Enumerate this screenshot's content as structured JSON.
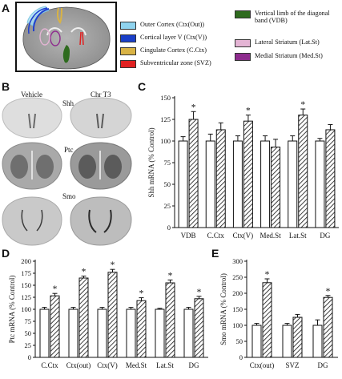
{
  "panels": {
    "A": "A",
    "B": "B",
    "C": "C",
    "D": "D",
    "E": "E"
  },
  "legend": [
    {
      "label": "Outer Cortex (Ctx(Out))",
      "color": "#8fd3ee"
    },
    {
      "label": "Cortical layer V (Ctx(V))",
      "color": "#1a3fc8"
    },
    {
      "label": "Cingulate Cortex (C.Ctx)",
      "color": "#d9b345"
    },
    {
      "label": "Subventricular zone (SVZ)",
      "color": "#e02020"
    },
    {
      "label": "Vertical limb of the diagonal band (VDB)",
      "color": "#2e6b1e"
    },
    {
      "label": "Lateral Striatum (Lat.St)",
      "color": "#e4b4d4"
    },
    {
      "label": "Medial Striatum (Med.St)",
      "color": "#8e2c8e"
    }
  ],
  "section_labels": {
    "vehicle": "Vehicle",
    "treated": "Chr T3",
    "rows": [
      "Shh",
      "Ptc",
      "Smo"
    ]
  },
  "significance_marker": "*",
  "chart_data": [
    {
      "id": "C",
      "type": "bar",
      "ylabel": "Shh mRNA (% Control)",
      "ylim": [
        0,
        150
      ],
      "yticks": [
        0,
        25,
        50,
        75,
        100,
        125,
        150
      ],
      "categories": [
        "VDB",
        "C.Ctx",
        "Ctx(V)",
        "Med.St",
        "Lat.St",
        "DG"
      ],
      "series": [
        {
          "values": [
            100,
            100,
            100,
            100,
            100,
            100
          ],
          "errors": [
            5,
            8,
            6,
            6,
            6,
            3
          ]
        },
        {
          "values": [
            125,
            113,
            123,
            93,
            130,
            113
          ],
          "errors": [
            9,
            8,
            7,
            9,
            7,
            6
          ]
        }
      ],
      "significant": [
        true,
        false,
        true,
        false,
        true,
        false
      ]
    },
    {
      "id": "D",
      "type": "bar",
      "ylabel": "Ptc mRNA (% Control)",
      "ylim": [
        0,
        200
      ],
      "yticks": [
        0,
        25,
        50,
        75,
        100,
        125,
        150,
        175,
        200
      ],
      "categories": [
        "C.Ctx",
        "Ctx(out)",
        "Ctx(V)",
        "Med.St",
        "Lat.St",
        "DG"
      ],
      "series": [
        {
          "values": [
            100,
            100,
            100,
            100,
            100,
            100
          ],
          "errors": [
            4,
            4,
            4,
            4,
            2,
            4
          ]
        },
        {
          "values": [
            128,
            165,
            177,
            118,
            155,
            122
          ],
          "errors": [
            5,
            4,
            6,
            6,
            6,
            5
          ]
        }
      ],
      "significant": [
        true,
        true,
        true,
        true,
        true,
        true
      ]
    },
    {
      "id": "E",
      "type": "bar",
      "ylabel": "Smo mRNA (% Control)",
      "ylim": [
        0,
        300
      ],
      "yticks": [
        0,
        50,
        100,
        150,
        200,
        250,
        300
      ],
      "categories": [
        "Ctx(out)",
        "SVZ",
        "DG"
      ],
      "series": [
        {
          "values": [
            100,
            100,
            100
          ],
          "errors": [
            6,
            6,
            17
          ]
        },
        {
          "values": [
            233,
            125,
            187
          ],
          "errors": [
            12,
            9,
            6
          ]
        }
      ],
      "significant": [
        true,
        false,
        true
      ]
    }
  ]
}
